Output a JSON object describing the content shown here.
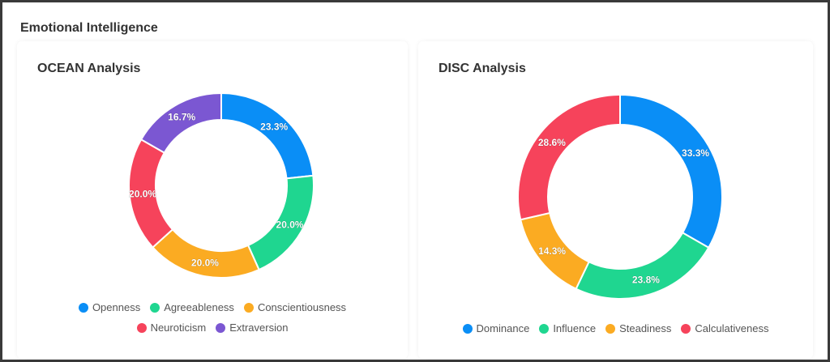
{
  "section_title": "Emotional Intelligence",
  "chart_data": [
    {
      "type": "pie",
      "title": "OCEAN Analysis",
      "categories": [
        "Openness",
        "Agreeableness",
        "Conscientiousness",
        "Neuroticism",
        "Extraversion"
      ],
      "values": [
        23.3,
        20.0,
        20.0,
        20.0,
        16.7
      ],
      "labels": [
        "23.3%",
        "20.0%",
        "20.0%",
        "20.0%",
        "16.7%"
      ],
      "colors": [
        "#0a8ef6",
        "#1fd690",
        "#fbab22",
        "#f6435b",
        "#7b57d2"
      ],
      "legend": "bottom",
      "legend_rows": [
        [
          "Openness",
          "Agreeableness",
          "Conscientiousness"
        ],
        [
          "Neuroticism",
          "Extraversion"
        ]
      ]
    },
    {
      "type": "pie",
      "title": "DISC Analysis",
      "categories": [
        "Dominance",
        "Influence",
        "Steadiness",
        "Calculativeness"
      ],
      "values": [
        33.3,
        23.8,
        14.3,
        28.6
      ],
      "labels": [
        "33.3%",
        "23.8%",
        "14.3%",
        "28.6%"
      ],
      "colors": [
        "#0a8ef6",
        "#1fd690",
        "#fbab22",
        "#f6435b"
      ],
      "legend": "bottom",
      "legend_rows": [
        [
          "Dominance",
          "Influence",
          "Steadiness",
          "Calculativeness"
        ]
      ]
    }
  ]
}
